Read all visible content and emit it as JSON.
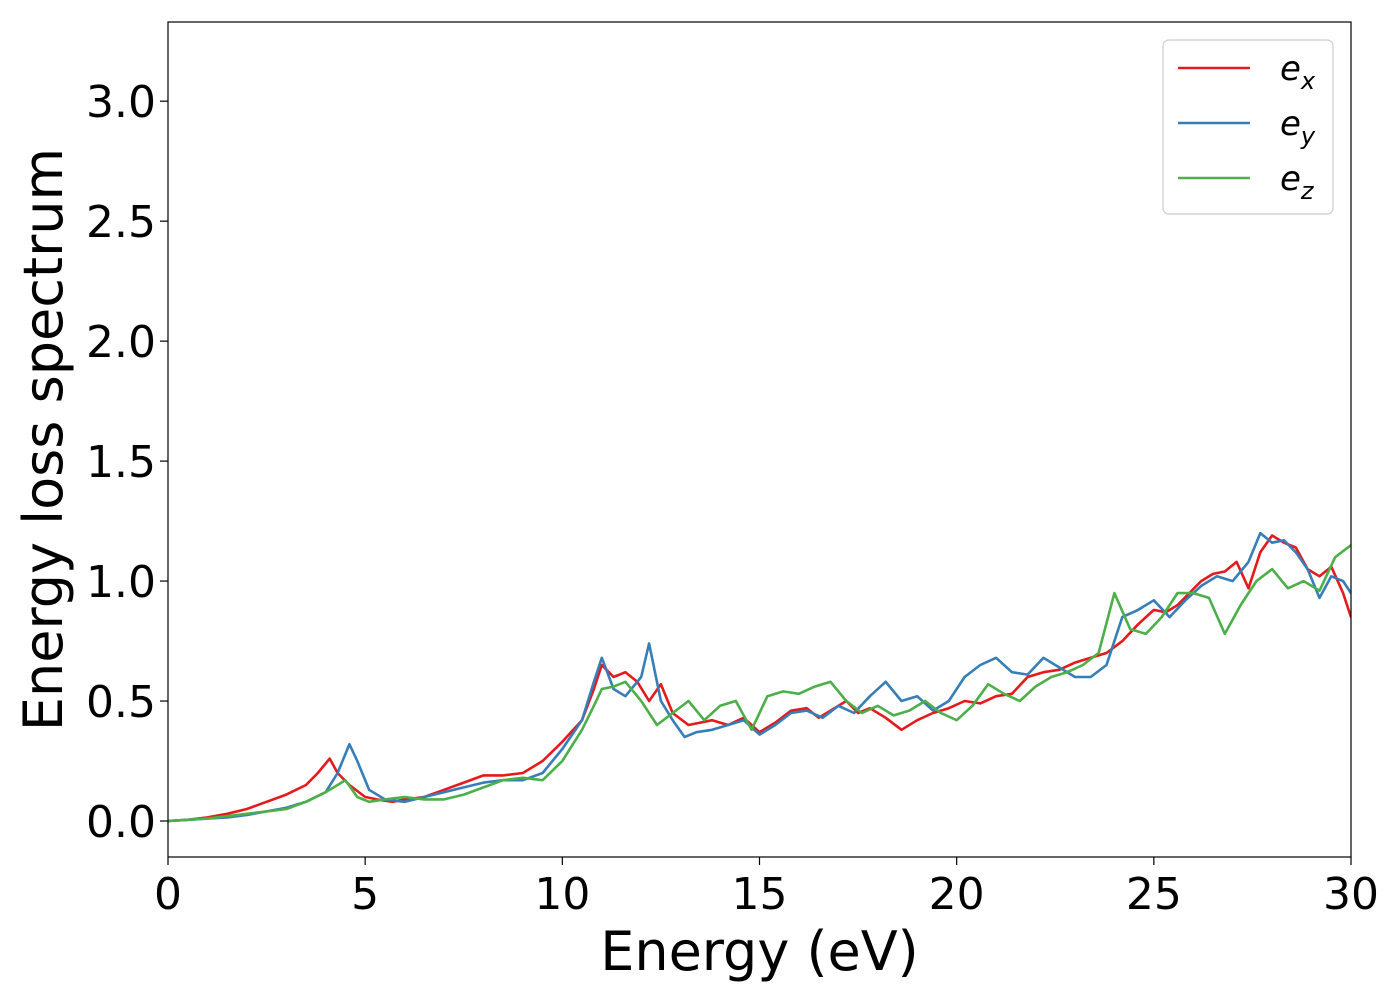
{
  "chart_data": {
    "type": "line",
    "xlabel": "Energy (eV)",
    "ylabel": "Energy loss spectrum",
    "xlim": [
      0,
      30
    ],
    "ylim": [
      -0.15,
      3.33
    ],
    "xticks": [
      0,
      5,
      10,
      15,
      20,
      25,
      30
    ],
    "yticks": [
      0.0,
      0.5,
      1.0,
      1.5,
      2.0,
      2.5,
      3.0
    ],
    "xtick_labels": [
      "0",
      "5",
      "10",
      "15",
      "20",
      "25",
      "30"
    ],
    "ytick_labels": [
      "0.0",
      "0.5",
      "1.0",
      "1.5",
      "2.0",
      "2.5",
      "3.0"
    ],
    "grid": false,
    "legend_position": "top-right",
    "series": [
      {
        "name": "e_x",
        "label_base": "e",
        "label_sub": "x",
        "color": "#e41a1c",
        "x": [
          0,
          0.5,
          1,
          1.5,
          2,
          2.5,
          3,
          3.5,
          3.8,
          4.1,
          4.3,
          4.6,
          5,
          5.3,
          5.7,
          6,
          6.5,
          7,
          7.5,
          8,
          8.5,
          9,
          9.5,
          10,
          10.5,
          10.8,
          11,
          11.3,
          11.6,
          11.9,
          12.2,
          12.5,
          12.8,
          13.2,
          13.5,
          13.8,
          14.2,
          14.6,
          15,
          15.4,
          15.8,
          16.2,
          16.5,
          16.8,
          17.2,
          17.5,
          17.8,
          18.2,
          18.6,
          19,
          19.4,
          19.8,
          20.2,
          20.6,
          21,
          21.4,
          21.8,
          22.2,
          22.6,
          23,
          23.4,
          23.8,
          24.2,
          24.6,
          25,
          25.3,
          25.6,
          25.9,
          26.2,
          26.5,
          26.8,
          27.1,
          27.4,
          27.7,
          28,
          28.3,
          28.6,
          28.9,
          29.2,
          29.5,
          29.8,
          30
        ],
        "y": [
          0,
          0.005,
          0.015,
          0.03,
          0.05,
          0.08,
          0.11,
          0.15,
          0.2,
          0.26,
          0.2,
          0.15,
          0.1,
          0.09,
          0.08,
          0.09,
          0.1,
          0.13,
          0.16,
          0.19,
          0.19,
          0.2,
          0.25,
          0.33,
          0.42,
          0.55,
          0.65,
          0.6,
          0.62,
          0.58,
          0.5,
          0.57,
          0.45,
          0.4,
          0.41,
          0.42,
          0.4,
          0.43,
          0.37,
          0.41,
          0.46,
          0.47,
          0.43,
          0.46,
          0.5,
          0.45,
          0.47,
          0.43,
          0.38,
          0.42,
          0.45,
          0.47,
          0.5,
          0.49,
          0.52,
          0.53,
          0.6,
          0.62,
          0.63,
          0.66,
          0.68,
          0.7,
          0.75,
          0.82,
          0.88,
          0.87,
          0.9,
          0.95,
          1.0,
          1.03,
          1.04,
          1.08,
          0.97,
          1.12,
          1.19,
          1.16,
          1.14,
          1.05,
          1.02,
          1.06,
          0.95,
          0.85
        ]
      },
      {
        "name": "e_y",
        "label_base": "e",
        "label_sub": "y",
        "color": "#377eb8",
        "x": [
          0,
          0.5,
          1,
          1.5,
          2,
          2.5,
          3,
          3.5,
          4,
          4.3,
          4.6,
          4.8,
          5.1,
          5.5,
          6,
          6.5,
          7,
          7.5,
          8,
          8.5,
          9,
          9.5,
          10,
          10.5,
          10.8,
          11,
          11.3,
          11.6,
          12,
          12.2,
          12.5,
          12.8,
          13.1,
          13.4,
          13.8,
          14.2,
          14.6,
          15,
          15.4,
          15.8,
          16.2,
          16.6,
          17,
          17.4,
          17.8,
          18.2,
          18.6,
          19,
          19.4,
          19.8,
          20.2,
          20.6,
          21,
          21.4,
          21.8,
          22.2,
          22.6,
          23,
          23.4,
          23.8,
          24.2,
          24.6,
          25,
          25.4,
          25.8,
          26.2,
          26.6,
          27,
          27.4,
          27.7,
          28,
          28.3,
          28.6,
          28.9,
          29.2,
          29.5,
          29.8,
          30
        ],
        "y": [
          0,
          0.005,
          0.01,
          0.015,
          0.025,
          0.04,
          0.055,
          0.08,
          0.12,
          0.2,
          0.32,
          0.25,
          0.13,
          0.09,
          0.08,
          0.1,
          0.12,
          0.14,
          0.16,
          0.17,
          0.17,
          0.2,
          0.3,
          0.42,
          0.58,
          0.68,
          0.55,
          0.52,
          0.6,
          0.74,
          0.5,
          0.42,
          0.35,
          0.37,
          0.38,
          0.4,
          0.42,
          0.36,
          0.4,
          0.45,
          0.46,
          0.43,
          0.48,
          0.45,
          0.52,
          0.58,
          0.5,
          0.52,
          0.46,
          0.5,
          0.6,
          0.65,
          0.68,
          0.62,
          0.61,
          0.68,
          0.64,
          0.6,
          0.6,
          0.65,
          0.85,
          0.88,
          0.92,
          0.85,
          0.92,
          0.98,
          1.02,
          1.0,
          1.08,
          1.2,
          1.16,
          1.17,
          1.12,
          1.05,
          0.93,
          1.02,
          1.0,
          0.95
        ]
      },
      {
        "name": "e_z",
        "label_base": "e",
        "label_sub": "z",
        "color": "#4daf4a",
        "x": [
          0,
          0.5,
          1,
          1.5,
          2,
          2.5,
          3,
          3.5,
          4,
          4.3,
          4.5,
          4.8,
          5.1,
          5.5,
          6,
          6.5,
          7,
          7.5,
          8,
          8.5,
          9,
          9.5,
          10,
          10.5,
          10.8,
          11,
          11.3,
          11.6,
          12,
          12.4,
          12.8,
          13.2,
          13.6,
          14,
          14.4,
          14.8,
          15.2,
          15.6,
          16,
          16.4,
          16.8,
          17.2,
          17.6,
          18,
          18.4,
          18.8,
          19.2,
          19.6,
          20,
          20.4,
          20.8,
          21.2,
          21.6,
          22,
          22.4,
          22.8,
          23.2,
          23.6,
          24,
          24.4,
          24.8,
          25.2,
          25.6,
          26,
          26.4,
          26.8,
          27.2,
          27.6,
          28,
          28.4,
          28.8,
          29.2,
          29.6,
          30
        ],
        "y": [
          0,
          0.005,
          0.01,
          0.02,
          0.03,
          0.04,
          0.05,
          0.08,
          0.12,
          0.15,
          0.17,
          0.1,
          0.08,
          0.09,
          0.1,
          0.09,
          0.09,
          0.11,
          0.14,
          0.17,
          0.18,
          0.17,
          0.25,
          0.38,
          0.48,
          0.55,
          0.56,
          0.58,
          0.5,
          0.4,
          0.45,
          0.5,
          0.42,
          0.48,
          0.5,
          0.38,
          0.52,
          0.54,
          0.53,
          0.56,
          0.58,
          0.5,
          0.45,
          0.48,
          0.44,
          0.46,
          0.5,
          0.45,
          0.42,
          0.48,
          0.57,
          0.53,
          0.5,
          0.56,
          0.6,
          0.62,
          0.65,
          0.7,
          0.95,
          0.8,
          0.78,
          0.85,
          0.95,
          0.95,
          0.93,
          0.78,
          0.9,
          1.0,
          1.05,
          0.97,
          1.0,
          0.96,
          1.1,
          1.15
        ]
      }
    ]
  }
}
